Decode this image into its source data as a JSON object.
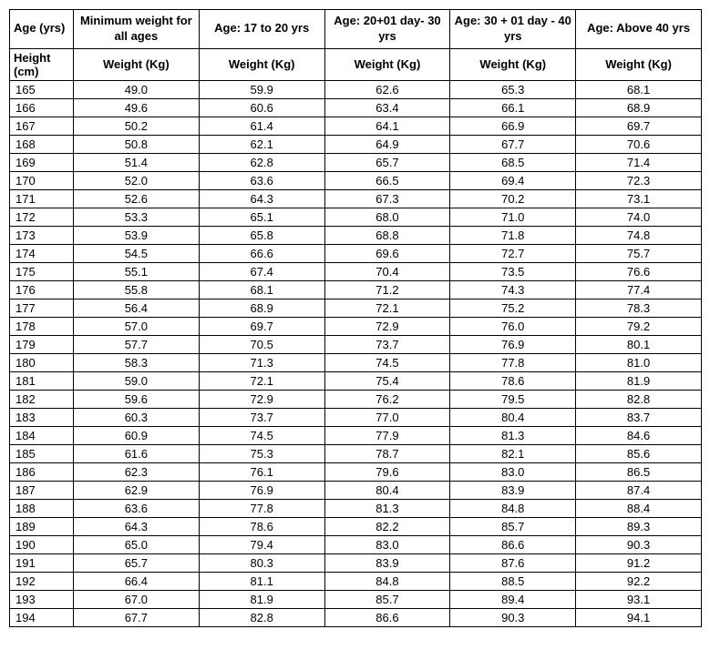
{
  "table": {
    "type": "table",
    "background_color": "#ffffff",
    "border_color": "#000000",
    "text_color": "#000000",
    "font_family": "Arial",
    "header_fontsize": 13,
    "body_fontsize": 13,
    "headerRow1": [
      "Age (yrs)",
      "Minimum weight for all ages",
      "Age: 17 to 20 yrs",
      "Age: 20+01 day- 30 yrs",
      "Age: 30 + 01 day - 40 yrs",
      "Age: Above 40 yrs"
    ],
    "headerRow2": [
      "Height (cm)",
      "Weight (Kg)",
      "Weight (Kg)",
      "Weight (Kg)",
      "Weight (Kg)",
      "Weight (Kg)"
    ],
    "columns": [
      {
        "align": "left",
        "width": 70
      },
      {
        "align": "center",
        "width": 138
      },
      {
        "align": "center",
        "width": 138
      },
      {
        "align": "center",
        "width": 138
      },
      {
        "align": "center",
        "width": 138
      },
      {
        "align": "center",
        "width": 138
      }
    ],
    "rows": [
      [
        "165",
        "49.0",
        "59.9",
        "62.6",
        "65.3",
        "68.1"
      ],
      [
        "166",
        "49.6",
        "60.6",
        "63.4",
        "66.1",
        "68.9"
      ],
      [
        "167",
        "50.2",
        "61.4",
        "64.1",
        "66.9",
        "69.7"
      ],
      [
        "168",
        "50.8",
        "62.1",
        "64.9",
        "67.7",
        "70.6"
      ],
      [
        "169",
        "51.4",
        "62.8",
        "65.7",
        "68.5",
        "71.4"
      ],
      [
        "170",
        "52.0",
        "63.6",
        "66.5",
        "69.4",
        "72.3"
      ],
      [
        "171",
        "52.6",
        "64.3",
        "67.3",
        "70.2",
        "73.1"
      ],
      [
        "172",
        "53.3",
        "65.1",
        "68.0",
        "71.0",
        "74.0"
      ],
      [
        "173",
        "53.9",
        "65.8",
        "68.8",
        "71.8",
        "74.8"
      ],
      [
        "174",
        "54.5",
        "66.6",
        "69.6",
        "72.7",
        "75.7"
      ],
      [
        "175",
        "55.1",
        "67.4",
        "70.4",
        "73.5",
        "76.6"
      ],
      [
        "176",
        "55.8",
        "68.1",
        "71.2",
        "74.3",
        "77.4"
      ],
      [
        "177",
        "56.4",
        "68.9",
        "72.1",
        "75.2",
        "78.3"
      ],
      [
        "178",
        "57.0",
        "69.7",
        "72.9",
        "76.0",
        "79.2"
      ],
      [
        "179",
        "57.7",
        "70.5",
        "73.7",
        "76.9",
        "80.1"
      ],
      [
        "180",
        "58.3",
        "71.3",
        "74.5",
        "77.8",
        "81.0"
      ],
      [
        "181",
        "59.0",
        "72.1",
        "75.4",
        "78.6",
        "81.9"
      ],
      [
        "182",
        "59.6",
        "72.9",
        "76.2",
        "79.5",
        "82.8"
      ],
      [
        "183",
        "60.3",
        "73.7",
        "77.0",
        "80.4",
        "83.7"
      ],
      [
        "184",
        "60.9",
        "74.5",
        "77.9",
        "81.3",
        "84.6"
      ],
      [
        "185",
        "61.6",
        "75.3",
        "78.7",
        "82.1",
        "85.6"
      ],
      [
        "186",
        "62.3",
        "76.1",
        "79.6",
        "83.0",
        "86.5"
      ],
      [
        "187",
        "62.9",
        "76.9",
        "80.4",
        "83.9",
        "87.4"
      ],
      [
        "188",
        "63.6",
        "77.8",
        "81.3",
        "84.8",
        "88.4"
      ],
      [
        "189",
        "64.3",
        "78.6",
        "82.2",
        "85.7",
        "89.3"
      ],
      [
        "190",
        "65.0",
        "79.4",
        "83.0",
        "86.6",
        "90.3"
      ],
      [
        "191",
        "65.7",
        "80.3",
        "83.9",
        "87.6",
        "91.2"
      ],
      [
        "192",
        "66.4",
        "81.1",
        "84.8",
        "88.5",
        "92.2"
      ],
      [
        "193",
        "67.0",
        "81.9",
        "85.7",
        "89.4",
        "93.1"
      ],
      [
        "194",
        "67.7",
        "82.8",
        "86.6",
        "90.3",
        "94.1"
      ]
    ]
  }
}
